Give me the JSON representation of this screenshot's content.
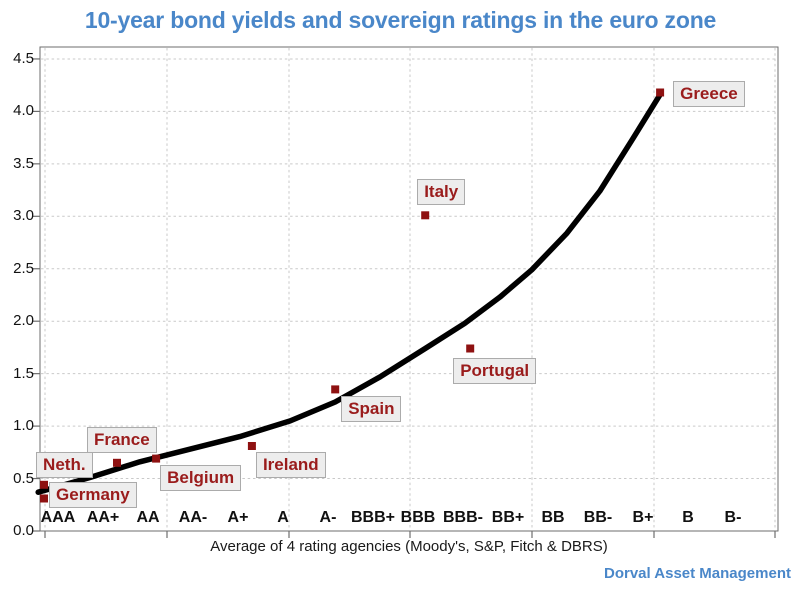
{
  "branding": {
    "text": "Dorval Asset Management"
  },
  "chart_data": {
    "type": "scatter",
    "title": "10-year bond yields and sovereign ratings in the euro zone",
    "xlabel": "Average of 4 rating agencies (Moody's, S&P, Fitch & DBRS)",
    "ylabel": "",
    "x_categories": [
      "AAA",
      "AA+",
      "AA",
      "AA-",
      "A+",
      "A",
      "A-",
      "BBB+",
      "BBB",
      "BBB-",
      "BB+",
      "BB",
      "BB-",
      "B+",
      "B",
      "B-"
    ],
    "y_ticks": [
      0.0,
      0.5,
      1.0,
      1.5,
      2.0,
      2.5,
      3.0,
      3.5,
      4.0,
      4.5
    ],
    "ylim": [
      0,
      4.6
    ],
    "grid": "dashed-light-gray",
    "legend": "none",
    "series": [
      {
        "name": "Euro zone countries",
        "marker": "square",
        "points": [
          {
            "country": "Netherlands",
            "label": "Neth.",
            "rating_approx": "AAA",
            "x_index": -0.31,
            "yield": 0.44,
            "ldx": -8,
            "ldy": -33
          },
          {
            "country": "Germany",
            "label": "Germany",
            "rating_approx": "AAA",
            "x_index": -0.31,
            "yield": 0.31,
            "ldx": 5,
            "ldy": -16
          },
          {
            "country": "France",
            "label": "France",
            "rating_approx": "AA",
            "x_index": 1.31,
            "yield": 0.65,
            "ldx": -30,
            "ldy": -36
          },
          {
            "country": "Belgium",
            "label": "Belgium",
            "rating_approx": "AA",
            "x_index": 2.18,
            "yield": 0.69,
            "ldx": 4,
            "ldy": 6
          },
          {
            "country": "Ireland",
            "label": "Ireland",
            "rating_approx": "A+",
            "x_index": 4.31,
            "yield": 0.81,
            "ldx": 4,
            "ldy": 6
          },
          {
            "country": "Spain",
            "label": "Spain",
            "rating_approx": "A-",
            "x_index": 6.16,
            "yield": 1.35,
            "ldx": 6,
            "ldy": 7
          },
          {
            "country": "Italy",
            "label": "Italy",
            "rating_approx": "BBB",
            "x_index": 8.16,
            "yield": 3.01,
            "ldx": -8,
            "ldy": -36
          },
          {
            "country": "Portugal",
            "label": "Portugal",
            "rating_approx": "BBB-",
            "x_index": 9.16,
            "yield": 1.74,
            "ldx": -17,
            "ldy": 10
          },
          {
            "country": "Greece",
            "label": "Greece",
            "rating_approx": "B+",
            "x_index": 13.38,
            "yield": 4.18,
            "ldx": 13,
            "ldy": -12
          }
        ]
      }
    ],
    "trend": {
      "name": "trend curve",
      "style": "thick-black-smooth",
      "points": [
        [
          -0.44,
          0.37
        ],
        [
          0.71,
          0.51
        ],
        [
          1.82,
          0.66
        ],
        [
          2.93,
          0.78
        ],
        [
          4.04,
          0.9
        ],
        [
          5.16,
          1.05
        ],
        [
          6.16,
          1.23
        ],
        [
          7.16,
          1.47
        ],
        [
          8.16,
          1.74
        ],
        [
          9.04,
          1.98
        ],
        [
          9.82,
          2.23
        ],
        [
          10.53,
          2.49
        ],
        [
          11.31,
          2.84
        ],
        [
          12.04,
          3.24
        ],
        [
          12.76,
          3.73
        ],
        [
          13.38,
          4.16
        ]
      ]
    },
    "colors": {
      "accent_blue": "#4a87c9",
      "marker_red": "#8e1111",
      "label_red": "#9a1c1c",
      "label_box_bg": "#ededed",
      "label_box_border": "#ababab",
      "trend_black": "#000000",
      "grid_gray": "#c9c9c9",
      "axis_gray": "#6e6e6e"
    }
  }
}
